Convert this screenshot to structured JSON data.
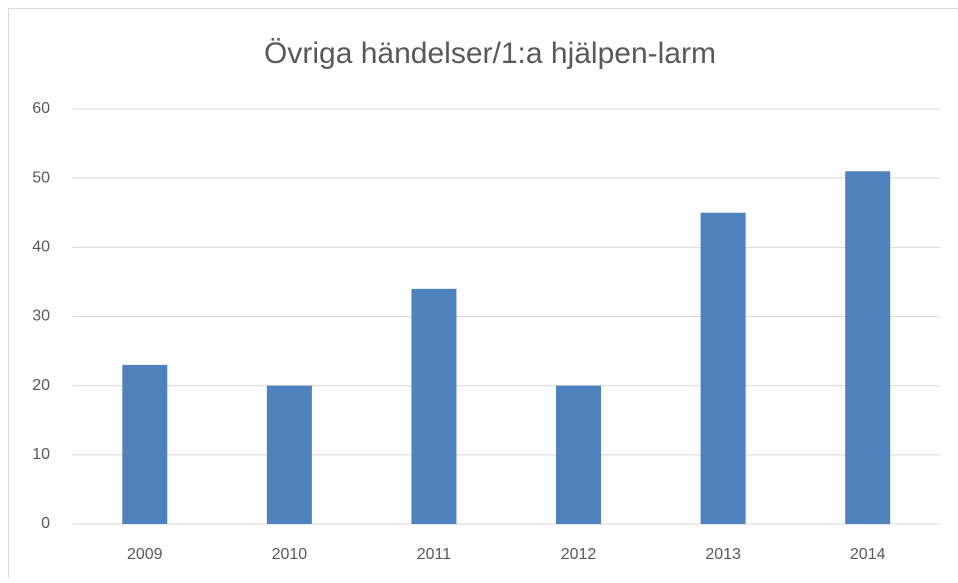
{
  "chart_data": {
    "type": "bar",
    "title": "Övriga händelser/1:a hjälpen-larm",
    "categories": [
      "2009",
      "2010",
      "2011",
      "2012",
      "2013",
      "2014"
    ],
    "values": [
      23,
      20,
      34,
      20,
      45,
      51
    ],
    "color": "#4f81bd",
    "ylim": [
      0,
      60
    ],
    "yticks": [
      0,
      10,
      20,
      30,
      40,
      50,
      60
    ],
    "grid": true
  }
}
